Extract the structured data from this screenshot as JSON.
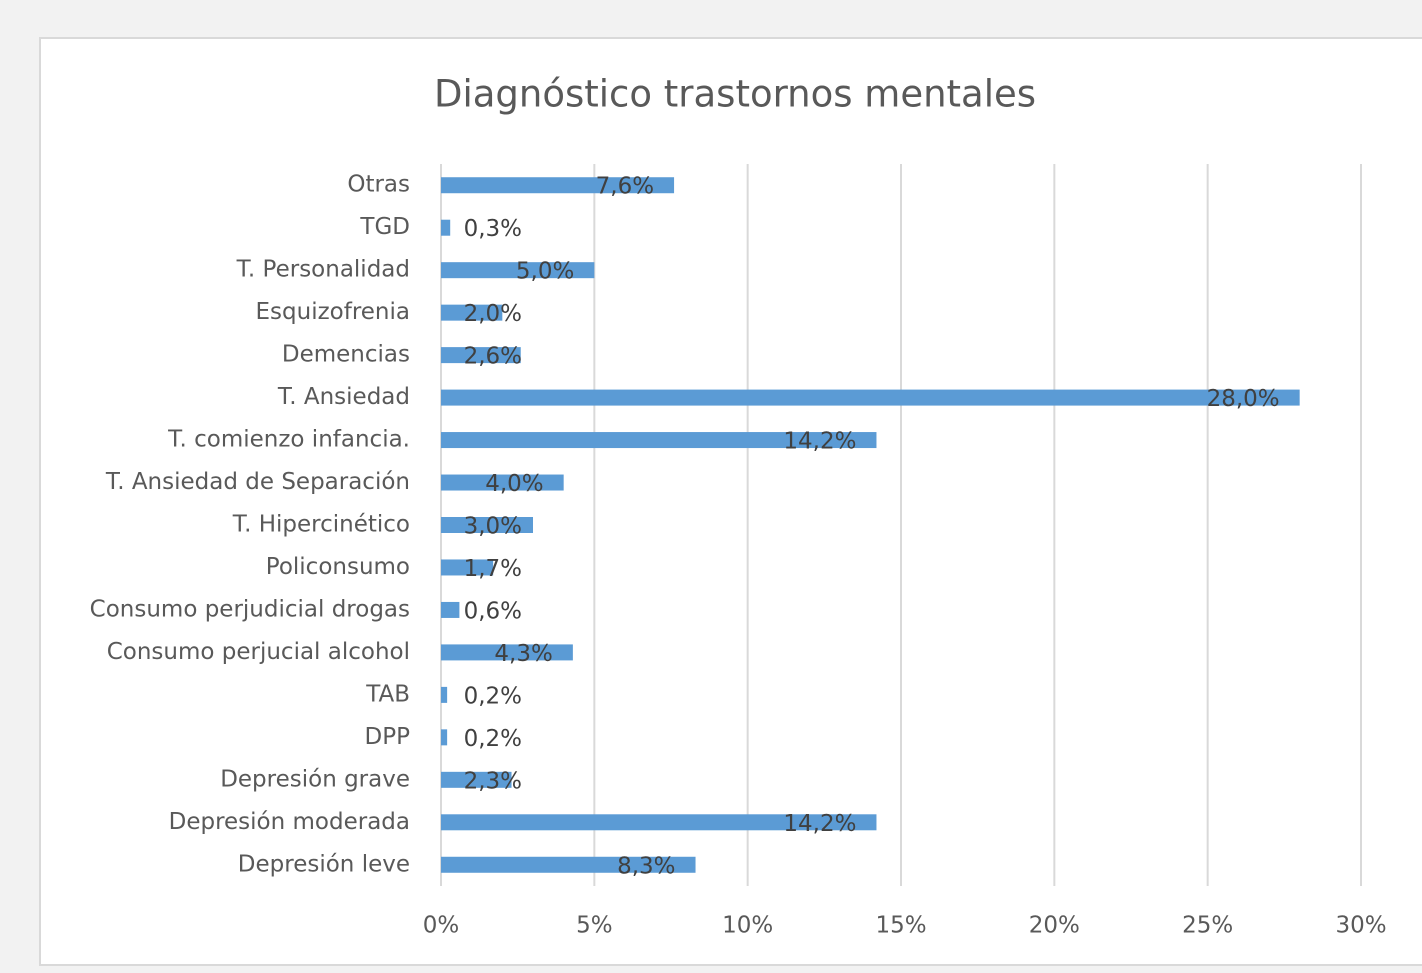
{
  "chart_data": {
    "type": "barh",
    "title": "Diagnóstico trastornos mentales",
    "categories": [
      "Otras",
      "TGD",
      "T. Personalidad",
      "Esquizofrenia",
      "Demencias",
      "T. Ansiedad",
      "T. comienzo infancia.",
      "T. Ansiedad de Separación",
      "T. Hipercinético",
      "Policonsumo",
      "Consumo perjudicial drogas",
      "Consumo perjucial alcohol",
      "TAB",
      "DPP",
      "Depresión grave",
      "Depresión moderada",
      "Depresión leve"
    ],
    "values": [
      7.6,
      0.3,
      5.0,
      2.0,
      2.6,
      28.0,
      14.2,
      4.0,
      3.0,
      1.7,
      0.6,
      4.3,
      0.2,
      0.2,
      2.3,
      14.2,
      8.3
    ],
    "value_labels": [
      "7,6%",
      "0,3%",
      "5,0%",
      "2,0%",
      "2,6%",
      "28,0%",
      "14,2%",
      "4,0%",
      "3,0%",
      "1,7%",
      "0,6%",
      "4,3%",
      "0,2%",
      "0,2%",
      "2,3%",
      "14,2%",
      "8,3%"
    ],
    "color": "#5b9bd5",
    "xlim": [
      0,
      30
    ],
    "xticks": [
      {
        "value": 0,
        "label": "0%"
      },
      {
        "value": 5,
        "label": "5%"
      },
      {
        "value": 10,
        "label": "10%"
      },
      {
        "value": 15,
        "label": "15%"
      },
      {
        "value": 20,
        "label": "20%"
      },
      {
        "value": 25,
        "label": "25%"
      },
      {
        "value": 30,
        "label": "30%"
      }
    ],
    "grid": true
  }
}
